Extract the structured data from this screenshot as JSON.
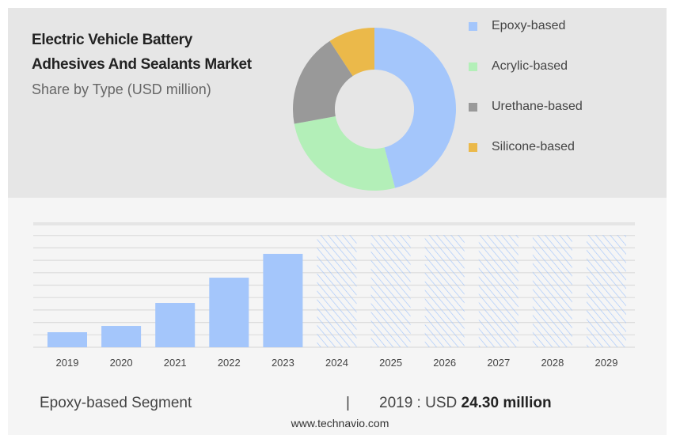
{
  "header": {
    "title_line1": "Electric Vehicle Battery",
    "title_line2": "Adhesives And Sealants Market",
    "subtitle": "Share by Type (USD million)"
  },
  "chart_data": [
    {
      "type": "pie",
      "variant": "donut",
      "title": "Share by Type (USD million)",
      "categories": [
        "Epoxy-based",
        "Acrylic-based",
        "Urethane-based",
        "Silicone-based"
      ],
      "values": [
        45.8,
        26.1,
        18.6,
        9.2
      ],
      "colors": [
        "#a4c6fb",
        "#b3efb8",
        "#999999",
        "#ebb94a"
      ],
      "legend": "right"
    },
    {
      "type": "bar",
      "title": "Epoxy-based Segment",
      "categories": [
        "2019",
        "2020",
        "2021",
        "2022",
        "2023",
        "2024",
        "2025",
        "2026",
        "2027",
        "2028",
        "2029"
      ],
      "values": [
        24.3,
        34.5,
        71.6,
        112.5,
        151.0,
        null,
        null,
        null,
        null,
        null,
        null
      ],
      "forecast": [
        false,
        false,
        false,
        false,
        false,
        true,
        true,
        true,
        true,
        true,
        true
      ],
      "ylim": [
        0,
        200
      ],
      "grid": true,
      "color": "#a4c6fb"
    }
  ],
  "footer": {
    "segment": "Epoxy-based Segment",
    "separator": "|",
    "year_label": "2019 : USD",
    "value": "24.30 million",
    "source": "www.technavio.com"
  }
}
